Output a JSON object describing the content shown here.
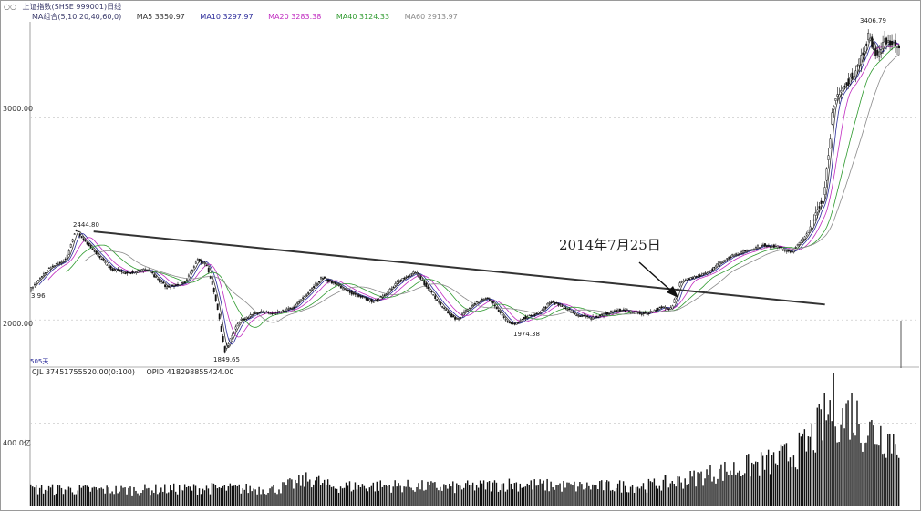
{
  "header": {
    "title": "上证指数(SHSE 999001)日线",
    "ma_group": "MA组合(5,10,20,40,60,0)",
    "ma5": "MA5 3350.97",
    "ma10": "MA10 3297.97",
    "ma20": "MA20 3283.38",
    "ma40": "MA40 3124.33",
    "ma60": "MA60 2913.97"
  },
  "colors": {
    "ma5": "#333333",
    "ma10": "#2a2a9a",
    "ma20": "#c02bc0",
    "ma40": "#2e9a2e",
    "ma60": "#8a8a8a",
    "candle": "#111111",
    "grid": "#cccccc"
  },
  "annotation": {
    "text": "2014年7月25日"
  },
  "labels": {
    "high": "2444.80",
    "low": "1849.65",
    "low2": "1974.38",
    "peak": "3406.79",
    "left_partial": "3.96",
    "days": "505天"
  },
  "volume": {
    "cjl": "CJL 37451755520.00(0:100)",
    "opid": "OPID 418298855424.00",
    "axis": "400.0亿"
  },
  "chart_data": {
    "type": "candlestick",
    "title": "",
    "yticks": [
      "3000.00",
      "2000.00"
    ],
    "ytick_values": [
      3000,
      2000
    ],
    "ylim": [
      1790,
      3460
    ],
    "close_trajectory": [
      [
        0,
        2150
      ],
      [
        20,
        2250
      ],
      [
        40,
        2300
      ],
      [
        50,
        2444.8
      ],
      [
        70,
        2340
      ],
      [
        90,
        2250
      ],
      [
        110,
        2230
      ],
      [
        130,
        2250
      ],
      [
        150,
        2160
      ],
      [
        170,
        2180
      ],
      [
        185,
        2300
      ],
      [
        195,
        2270
      ],
      [
        205,
        2100
      ],
      [
        215,
        1849.65
      ],
      [
        230,
        1990
      ],
      [
        250,
        2040
      ],
      [
        270,
        2030
      ],
      [
        290,
        2060
      ],
      [
        310,
        2150
      ],
      [
        322,
        2210
      ],
      [
        340,
        2170
      ],
      [
        360,
        2120
      ],
      [
        380,
        2090
      ],
      [
        395,
        2140
      ],
      [
        410,
        2200
      ],
      [
        425,
        2240
      ],
      [
        440,
        2150
      ],
      [
        455,
        2060
      ],
      [
        470,
        2000
      ],
      [
        480,
        2040
      ],
      [
        490,
        2080
      ],
      [
        505,
        2110
      ],
      [
        515,
        2060
      ],
      [
        525,
        2000
      ],
      [
        535,
        1974.38
      ],
      [
        545,
        2010
      ],
      [
        560,
        2030
      ],
      [
        575,
        2090
      ],
      [
        590,
        2060
      ],
      [
        605,
        2020
      ],
      [
        620,
        2010
      ],
      [
        635,
        2030
      ],
      [
        650,
        2050
      ],
      [
        665,
        2040
      ],
      [
        680,
        2030
      ],
      [
        695,
        2060
      ],
      [
        708,
        2060
      ],
      [
        718,
        2190
      ],
      [
        735,
        2210
      ],
      [
        750,
        2240
      ],
      [
        770,
        2310
      ],
      [
        790,
        2340
      ],
      [
        810,
        2370
      ],
      [
        825,
        2360
      ],
      [
        840,
        2330
      ],
      [
        855,
        2410
      ],
      [
        865,
        2490
      ],
      [
        875,
        2600
      ],
      [
        880,
        2780
      ],
      [
        885,
        3000
      ],
      [
        890,
        3100
      ],
      [
        900,
        3160
      ],
      [
        910,
        3220
      ],
      [
        920,
        3320
      ],
      [
        925,
        3406.79
      ],
      [
        935,
        3300
      ],
      [
        945,
        3380
      ],
      [
        955,
        3360
      ]
    ],
    "trendline": [
      [
        50,
        2444.8
      ],
      [
        850,
        2040
      ]
    ],
    "volume_ylabel": "400.0亿",
    "volume_ytick_value": 400,
    "volume_ylim": [
      0,
      620
    ],
    "volume_envelope": [
      [
        0,
        100
      ],
      [
        100,
        95
      ],
      [
        200,
        105
      ],
      [
        270,
        100
      ],
      [
        310,
        160
      ],
      [
        330,
        115
      ],
      [
        400,
        120
      ],
      [
        470,
        110
      ],
      [
        530,
        130
      ],
      [
        600,
        115
      ],
      [
        680,
        120
      ],
      [
        720,
        150
      ],
      [
        750,
        190
      ],
      [
        790,
        230
      ],
      [
        820,
        260
      ],
      [
        850,
        330
      ],
      [
        860,
        380
      ],
      [
        870,
        450
      ],
      [
        880,
        540
      ],
      [
        885,
        600
      ],
      [
        895,
        500
      ],
      [
        905,
        560
      ],
      [
        920,
        450
      ],
      [
        940,
        420
      ],
      [
        955,
        380
      ]
    ]
  }
}
